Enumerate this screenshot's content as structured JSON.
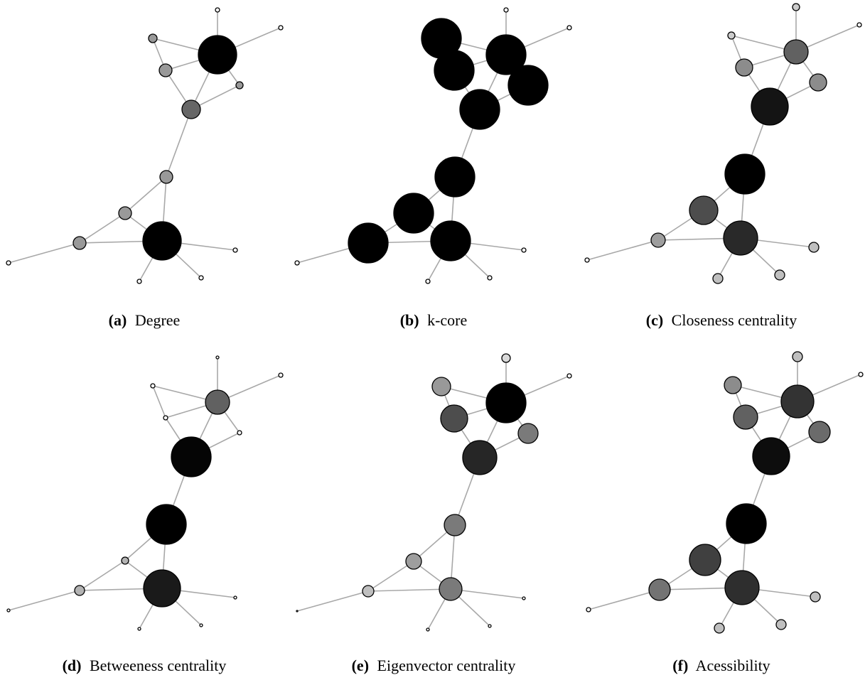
{
  "figure": {
    "panels": [
      {
        "id": "a",
        "label": "(a)",
        "title": "Degree",
        "node_sizes": [
          3,
          6,
          9,
          27,
          5,
          13,
          9,
          9,
          9,
          27,
          3,
          3,
          3,
          3
        ],
        "node_gray": [
          1,
          0.6,
          0.6,
          0.0,
          0.6,
          0.4,
          0.6,
          0.6,
          0.6,
          0.0,
          1,
          1,
          1,
          1
        ]
      },
      {
        "id": "b",
        "label": "(b)",
        "title": "k-core",
        "node_sizes": [
          3,
          28,
          28,
          28,
          28,
          28,
          28,
          28,
          28,
          28,
          3,
          3,
          3,
          3
        ],
        "node_gray": [
          1,
          0,
          0,
          0,
          0,
          0,
          0,
          0,
          0,
          0,
          1,
          1,
          1,
          1
        ]
      },
      {
        "id": "c",
        "label": "(c)",
        "title": "Closeness centrality",
        "node_sizes": [
          5,
          5,
          12,
          17,
          12,
          26,
          28,
          20,
          10,
          24,
          3,
          7,
          7,
          7
        ],
        "node_gray": [
          0.8,
          0.8,
          0.55,
          0.38,
          0.55,
          0.08,
          0.0,
          0.3,
          0.62,
          0.16,
          1,
          0.75,
          0.75,
          0.75
        ]
      },
      {
        "id": "d",
        "label": "(d)",
        "title": "Betweeness centrality",
        "node_sizes": [
          2,
          3,
          3,
          17,
          3,
          28,
          28,
          5,
          7,
          26,
          2,
          2,
          2,
          2
        ],
        "node_gray": [
          1,
          1,
          1,
          0.38,
          1,
          0.02,
          0.0,
          0.7,
          0.7,
          0.1,
          1,
          1,
          1,
          1
        ]
      },
      {
        "id": "e",
        "label": "(e)",
        "title": "Eigenvector centrality",
        "node_sizes": [
          6,
          13,
          19,
          28,
          14,
          24,
          15,
          11,
          8,
          16,
          1,
          2,
          2,
          2
        ],
        "node_gray": [
          0.85,
          0.6,
          0.3,
          0.0,
          0.48,
          0.15,
          0.48,
          0.62,
          0.75,
          0.48,
          1,
          1,
          1,
          1
        ]
      },
      {
        "id": "f",
        "label": "(f)",
        "title": "Acessibility",
        "node_sizes": [
          7,
          12,
          17,
          23,
          15,
          26,
          28,
          22,
          15,
          24,
          3,
          7,
          7,
          7
        ],
        "node_gray": [
          0.75,
          0.55,
          0.38,
          0.2,
          0.42,
          0.05,
          0.0,
          0.25,
          0.45,
          0.18,
          1,
          0.75,
          0.75,
          0.75
        ]
      }
    ]
  }
}
